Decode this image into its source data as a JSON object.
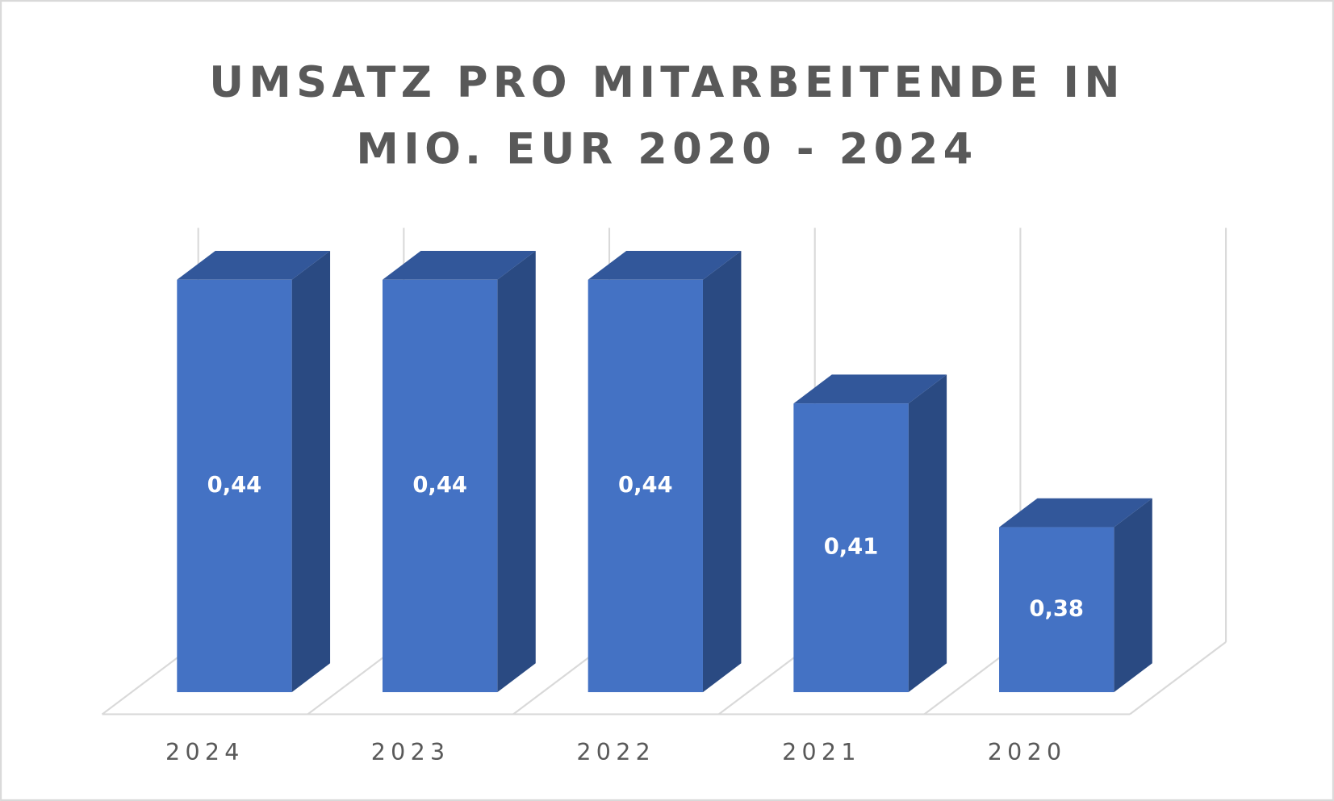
{
  "chart_data": {
    "type": "bar3d",
    "title": "UMSATZ PRO MITARBEITENDE IN MIO. EUR 2020 - 2024",
    "categories": [
      "2024",
      "2023",
      "2022",
      "2021",
      "2020"
    ],
    "values": [
      0.44,
      0.44,
      0.44,
      0.41,
      0.38
    ],
    "value_labels": [
      "0,44",
      "0,44",
      "0,44",
      "0,41",
      "0,38"
    ],
    "color": "#4472c4",
    "ylim": [
      0.34,
      0.44
    ]
  }
}
